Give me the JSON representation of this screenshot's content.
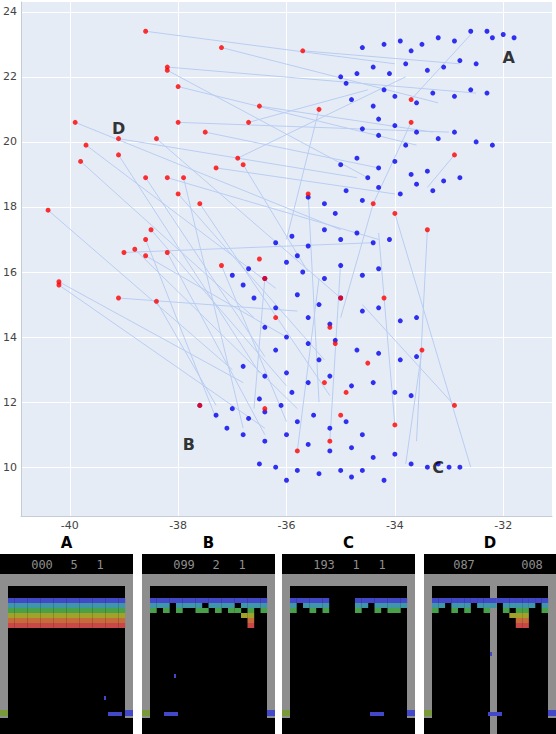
{
  "chart_data": {
    "type": "scatter",
    "xlim": [
      -40.9,
      -31.1
    ],
    "xticks": [
      -40,
      -38,
      -36,
      -34,
      -32
    ],
    "ylim": [
      8.5,
      24.3
    ],
    "yticks": [
      10,
      12,
      14,
      16,
      18,
      20,
      22,
      24
    ],
    "grid": true,
    "series": [
      {
        "type": "segments",
        "color": "#b9cdf3",
        "values": [
          [
            -38.6,
            23.4,
            -34.0,
            22.4
          ],
          [
            -37.2,
            22.9,
            -33.2,
            21.2
          ],
          [
            -35.7,
            22.8,
            -32.8,
            22.4
          ],
          [
            -38.2,
            22.3,
            -32.5,
            21.5
          ],
          [
            -38.2,
            22.2,
            -34.5,
            18.9
          ],
          [
            -38.0,
            21.7,
            -33.6,
            19.9
          ],
          [
            -36.5,
            21.1,
            -33.3,
            20.3
          ],
          [
            -35.4,
            21.0,
            -36.0,
            17.0
          ],
          [
            -36.7,
            20.6,
            -34.5,
            21.6
          ],
          [
            -39.9,
            20.6,
            -35.0,
            17.3
          ],
          [
            -38.0,
            20.6,
            -33.0,
            20.3
          ],
          [
            -37.5,
            20.3,
            -34.3,
            19.2
          ],
          [
            -39.7,
            19.9,
            -36.2,
            15.5
          ],
          [
            -39.1,
            20.1,
            -34.7,
            18.9
          ],
          [
            -38.4,
            20.1,
            -35.0,
            15.2
          ],
          [
            -39.1,
            19.6,
            -36.5,
            12.9
          ],
          [
            -39.8,
            19.4,
            -36.6,
            14.6
          ],
          [
            -36.9,
            19.5,
            -33.8,
            22.0
          ],
          [
            -36.8,
            19.3,
            -35.6,
            16.0
          ],
          [
            -37.3,
            19.2,
            -34.0,
            18.4
          ],
          [
            -38.6,
            18.9,
            -36.4,
            13.4
          ],
          [
            -38.2,
            18.9,
            -34.3,
            17.0
          ],
          [
            -37.9,
            18.9,
            -36.8,
            11.2
          ],
          [
            -38.0,
            18.4,
            -35.3,
            13.3
          ],
          [
            -37.6,
            18.1,
            -35.2,
            12.2
          ],
          [
            -40.4,
            17.9,
            -37.0,
            13.0
          ],
          [
            -38.5,
            17.3,
            -36.0,
            12.5
          ],
          [
            -38.6,
            17.0,
            -37.3,
            11.5
          ],
          [
            -39.0,
            16.6,
            -34.4,
            16.9
          ],
          [
            -38.8,
            16.7,
            -35.8,
            11.8
          ],
          [
            -38.2,
            16.6,
            -36.4,
            11.0
          ],
          [
            -38.6,
            16.5,
            -36.0,
            14.0
          ],
          [
            -40.2,
            15.7,
            -36.8,
            12.6
          ],
          [
            -40.2,
            15.6,
            -36.4,
            11.2
          ],
          [
            -39.1,
            15.2,
            -35.8,
            14.8
          ],
          [
            -38.4,
            15.1,
            -37.3,
            11.9
          ],
          [
            -37.2,
            16.2,
            -36.0,
            11.4
          ],
          [
            -35.6,
            18.4,
            -35.4,
            12.0
          ],
          [
            -34.4,
            18.1,
            -35.0,
            14.6
          ],
          [
            -33.4,
            17.3,
            -33.6,
            10.8
          ],
          [
            -32.9,
            19.6,
            -33.4,
            18.6
          ],
          [
            -33.7,
            21.3,
            -32.6,
            23.3
          ],
          [
            -33.5,
            13.6,
            -33.8,
            10.1
          ],
          [
            -32.9,
            11.9,
            -34.6,
            15.0
          ],
          [
            -34.0,
            11.3,
            -34.3,
            17.2
          ],
          [
            -35.8,
            10.5,
            -35.4,
            15.8
          ],
          [
            -35.2,
            10.8,
            -35.0,
            16.3
          ],
          [
            -34.0,
            17.8,
            -32.6,
            10.0
          ],
          [
            -36.4,
            15.8,
            -36.6,
            11.8
          ],
          [
            -33.7,
            20.6,
            -34.4,
            18.1
          ]
        ]
      },
      {
        "type": "scatter",
        "color": "#0000ee",
        "values": [
          [
            -34.6,
            22.9
          ],
          [
            -34.2,
            23.0
          ],
          [
            -33.9,
            23.1
          ],
          [
            -33.5,
            23.0
          ],
          [
            -33.2,
            23.2
          ],
          [
            -32.9,
            23.1
          ],
          [
            -32.6,
            23.4
          ],
          [
            -32.3,
            23.4
          ],
          [
            -32.0,
            23.3
          ],
          [
            -31.8,
            23.2
          ],
          [
            -32.2,
            23.2
          ],
          [
            -33.7,
            22.8
          ],
          [
            -35.0,
            22.0
          ],
          [
            -34.7,
            22.1
          ],
          [
            -34.4,
            22.3
          ],
          [
            -34.1,
            22.1
          ],
          [
            -33.8,
            22.4
          ],
          [
            -33.4,
            22.2
          ],
          [
            -33.1,
            22.3
          ],
          [
            -32.8,
            22.5
          ],
          [
            -32.5,
            22.4
          ],
          [
            -34.9,
            21.8
          ],
          [
            -34.8,
            21.3
          ],
          [
            -34.4,
            21.1
          ],
          [
            -34.0,
            21.4
          ],
          [
            -33.6,
            21.2
          ],
          [
            -33.3,
            21.5
          ],
          [
            -32.9,
            21.4
          ],
          [
            -32.6,
            21.6
          ],
          [
            -32.3,
            21.5
          ],
          [
            -34.2,
            21.6
          ],
          [
            -34.6,
            20.4
          ],
          [
            -34.3,
            20.2
          ],
          [
            -34.0,
            20.5
          ],
          [
            -33.6,
            20.3
          ],
          [
            -33.2,
            20.1
          ],
          [
            -32.9,
            20.3
          ],
          [
            -32.5,
            20.0
          ],
          [
            -32.2,
            19.9
          ],
          [
            -34.3,
            20.7
          ],
          [
            -33.8,
            19.9
          ],
          [
            -35.0,
            19.3
          ],
          [
            -34.7,
            19.5
          ],
          [
            -34.3,
            19.2
          ],
          [
            -34.0,
            19.4
          ],
          [
            -33.7,
            19.0
          ],
          [
            -33.4,
            19.1
          ],
          [
            -33.1,
            18.8
          ],
          [
            -32.8,
            18.9
          ],
          [
            -34.5,
            18.9
          ],
          [
            -35.6,
            18.3
          ],
          [
            -35.3,
            18.1
          ],
          [
            -34.9,
            18.5
          ],
          [
            -34.6,
            18.2
          ],
          [
            -34.3,
            18.6
          ],
          [
            -33.9,
            18.4
          ],
          [
            -33.6,
            18.7
          ],
          [
            -33.3,
            18.5
          ],
          [
            -35.1,
            17.8
          ],
          [
            -36.2,
            16.9
          ],
          [
            -35.9,
            17.1
          ],
          [
            -35.6,
            16.8
          ],
          [
            -35.3,
            17.3
          ],
          [
            -35.0,
            17.0
          ],
          [
            -34.7,
            17.2
          ],
          [
            -34.4,
            16.9
          ],
          [
            -34.1,
            17.0
          ],
          [
            -35.8,
            16.5
          ],
          [
            -37.0,
            15.9
          ],
          [
            -36.7,
            16.1
          ],
          [
            -36.4,
            15.8
          ],
          [
            -36.0,
            16.3
          ],
          [
            -35.7,
            16.0
          ],
          [
            -35.3,
            15.8
          ],
          [
            -35.0,
            16.2
          ],
          [
            -34.6,
            15.9
          ],
          [
            -34.3,
            16.1
          ],
          [
            -36.8,
            15.6
          ],
          [
            -36.6,
            15.2
          ],
          [
            -36.2,
            14.9
          ],
          [
            -35.8,
            15.3
          ],
          [
            -35.4,
            15.0
          ],
          [
            -35.0,
            15.2
          ],
          [
            -34.6,
            14.8
          ],
          [
            -34.3,
            14.9
          ],
          [
            -33.9,
            14.5
          ],
          [
            -33.6,
            14.6
          ],
          [
            -35.6,
            14.6
          ],
          [
            -35.2,
            14.4
          ],
          [
            -36.4,
            14.3
          ],
          [
            -36.0,
            14.0
          ],
          [
            -35.6,
            13.8
          ],
          [
            -35.1,
            13.9
          ],
          [
            -34.7,
            13.6
          ],
          [
            -34.3,
            13.5
          ],
          [
            -33.9,
            13.3
          ],
          [
            -33.6,
            13.4
          ],
          [
            -36.2,
            13.6
          ],
          [
            -35.4,
            13.3
          ],
          [
            -36.8,
            13.1
          ],
          [
            -36.4,
            12.8
          ],
          [
            -36.0,
            12.9
          ],
          [
            -35.6,
            12.6
          ],
          [
            -35.2,
            12.8
          ],
          [
            -34.8,
            12.5
          ],
          [
            -34.4,
            12.6
          ],
          [
            -34.0,
            12.3
          ],
          [
            -33.7,
            12.2
          ],
          [
            -35.9,
            12.3
          ],
          [
            -37.6,
            11.9
          ],
          [
            -37.3,
            11.6
          ],
          [
            -37.0,
            11.8
          ],
          [
            -36.7,
            11.5
          ],
          [
            -36.4,
            11.7
          ],
          [
            -36.1,
            11.9
          ],
          [
            -35.8,
            11.4
          ],
          [
            -35.5,
            11.6
          ],
          [
            -35.2,
            11.2
          ],
          [
            -34.9,
            11.4
          ],
          [
            -34.6,
            11.0
          ],
          [
            -37.1,
            11.2
          ],
          [
            -36.5,
            12.1
          ],
          [
            -36.8,
            11.0
          ],
          [
            -36.4,
            10.8
          ],
          [
            -36.0,
            11.0
          ],
          [
            -35.6,
            10.7
          ],
          [
            -35.2,
            10.5
          ],
          [
            -34.8,
            10.6
          ],
          [
            -34.4,
            10.3
          ],
          [
            -34.0,
            10.4
          ],
          [
            -33.7,
            10.1
          ],
          [
            -33.4,
            10.0
          ],
          [
            -33.2,
            10.1
          ],
          [
            -33.0,
            10.0
          ],
          [
            -32.8,
            10.0
          ],
          [
            -36.5,
            10.1
          ],
          [
            -36.2,
            10.0
          ],
          [
            -35.8,
            9.9
          ],
          [
            -35.4,
            9.8
          ],
          [
            -35.0,
            9.9
          ],
          [
            -34.6,
            9.9
          ],
          [
            -34.2,
            9.6
          ],
          [
            -34.8,
            9.7
          ],
          [
            -36.0,
            9.6
          ]
        ]
      },
      {
        "type": "scatter",
        "color": "#ff0000",
        "values": [
          [
            -38.6,
            23.4
          ],
          [
            -37.2,
            22.9
          ],
          [
            -35.7,
            22.8
          ],
          [
            -38.2,
            22.3
          ],
          [
            -38.2,
            22.2
          ],
          [
            -38.0,
            21.7
          ],
          [
            -36.5,
            21.1
          ],
          [
            -35.4,
            21.0
          ],
          [
            -36.7,
            20.6
          ],
          [
            -39.9,
            20.6
          ],
          [
            -38.0,
            20.6
          ],
          [
            -37.5,
            20.3
          ],
          [
            -39.7,
            19.9
          ],
          [
            -39.1,
            20.1
          ],
          [
            -38.4,
            20.1
          ],
          [
            -39.1,
            19.6
          ],
          [
            -39.8,
            19.4
          ],
          [
            -36.9,
            19.5
          ],
          [
            -36.8,
            19.3
          ],
          [
            -37.3,
            19.2
          ],
          [
            -38.6,
            18.9
          ],
          [
            -38.2,
            18.9
          ],
          [
            -37.9,
            18.9
          ],
          [
            -38.0,
            18.4
          ],
          [
            -37.6,
            18.1
          ],
          [
            -40.4,
            17.9
          ],
          [
            -38.5,
            17.3
          ],
          [
            -38.6,
            17.0
          ],
          [
            -39.0,
            16.6
          ],
          [
            -38.8,
            16.7
          ],
          [
            -38.2,
            16.6
          ],
          [
            -38.6,
            16.5
          ],
          [
            -40.2,
            15.7
          ],
          [
            -40.2,
            15.6
          ],
          [
            -39.1,
            15.2
          ],
          [
            -38.4,
            15.1
          ],
          [
            -37.2,
            16.2
          ],
          [
            -35.6,
            18.4
          ],
          [
            -34.4,
            18.1
          ],
          [
            -33.4,
            17.3
          ],
          [
            -32.9,
            19.6
          ],
          [
            -33.7,
            21.3
          ],
          [
            -33.5,
            13.6
          ],
          [
            -32.9,
            11.9
          ],
          [
            -34.0,
            11.3
          ],
          [
            -35.8,
            10.5
          ],
          [
            -35.2,
            10.8
          ],
          [
            -34.0,
            17.8
          ],
          [
            -36.4,
            15.8
          ],
          [
            -33.7,
            20.6
          ],
          [
            -36.2,
            14.6
          ],
          [
            -35.1,
            13.8
          ],
          [
            -34.5,
            13.2
          ],
          [
            -35.0,
            11.6
          ],
          [
            -36.4,
            11.8
          ],
          [
            -37.6,
            11.9
          ],
          [
            -35.3,
            12.6
          ],
          [
            -34.9,
            12.3
          ],
          [
            -35.0,
            15.2
          ],
          [
            -34.2,
            15.2
          ],
          [
            -35.2,
            14.3
          ],
          [
            -36.5,
            16.4
          ]
        ]
      }
    ],
    "annotations": [
      {
        "text": "A",
        "x": -31.9,
        "y": 22.6
      },
      {
        "text": "B",
        "x": -37.8,
        "y": 10.7
      },
      {
        "text": "C",
        "x": -33.2,
        "y": 10.0
      },
      {
        "text": "D",
        "x": -39.1,
        "y": 20.4
      }
    ]
  },
  "screenshots": [
    {
      "title": "A",
      "score": [
        "000",
        "5",
        "1"
      ]
    },
    {
      "title": "B",
      "score": [
        "099",
        "2",
        "1"
      ]
    },
    {
      "title": "C",
      "score": [
        "193",
        "1",
        "1"
      ]
    },
    {
      "title": "D",
      "score": [
        "087",
        "008"
      ]
    }
  ]
}
